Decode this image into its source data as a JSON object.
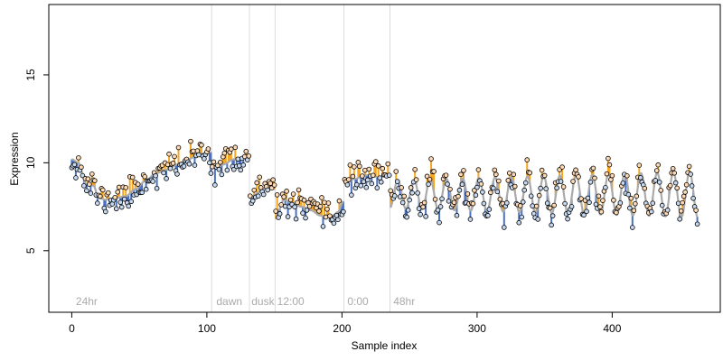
{
  "chart_data": {
    "type": "scatter",
    "title": "",
    "xlabel": "Sample index",
    "ylabel": "Expression",
    "xlim": [
      -17,
      480
    ],
    "ylim": [
      1.5,
      19
    ],
    "xticks": [
      0,
      100,
      200,
      300,
      400
    ],
    "yticks": [
      5,
      10,
      15
    ],
    "grid": false,
    "legend": "none",
    "section_boundaries": [
      104,
      132,
      151,
      202,
      236
    ],
    "section_labels": [
      {
        "x": 3,
        "label": "24hr"
      },
      {
        "x": 107,
        "label": "dawn"
      },
      {
        "x": 133,
        "label": "dusk"
      },
      {
        "x": 152,
        "label": "12:00"
      },
      {
        "x": 204,
        "label": "0:00"
      },
      {
        "x": 238,
        "label": "48hr"
      }
    ],
    "segments": [
      {
        "start": 0,
        "end": 103,
        "model": "smooth",
        "knots": [
          [
            0,
            10.2
          ],
          [
            5,
            10.0
          ],
          [
            8,
            9.4
          ],
          [
            10,
            8.8
          ],
          [
            16,
            8.7
          ],
          [
            20,
            8.0
          ],
          [
            25,
            7.9
          ],
          [
            33,
            8.0
          ],
          [
            40,
            8.1
          ],
          [
            47,
            8.5
          ],
          [
            55,
            9.0
          ],
          [
            62,
            9.4
          ],
          [
            70,
            9.6
          ],
          [
            78,
            9.9
          ],
          [
            86,
            10.2
          ],
          [
            95,
            10.5
          ],
          [
            103,
            10.6
          ]
        ]
      },
      {
        "start": 104,
        "end": 131,
        "model": "smooth",
        "knots": [
          [
            104,
            9.7
          ],
          [
            112,
            9.9
          ],
          [
            120,
            10.2
          ],
          [
            127,
            10.3
          ],
          [
            131,
            10.2
          ]
        ]
      },
      {
        "start": 132,
        "end": 150,
        "model": "smooth",
        "knots": [
          [
            132,
            8.0
          ],
          [
            136,
            8.2
          ],
          [
            141,
            8.5
          ],
          [
            146,
            8.6
          ],
          [
            150,
            8.5
          ]
        ]
      },
      {
        "start": 151,
        "end": 201,
        "model": "smooth",
        "knots": [
          [
            151,
            6.8
          ],
          [
            153,
            7.3
          ],
          [
            157,
            7.9
          ],
          [
            163,
            7.7
          ],
          [
            170,
            7.5
          ],
          [
            177,
            7.3
          ],
          [
            184,
            7.0
          ],
          [
            189,
            6.9
          ],
          [
            193,
            7.0
          ],
          [
            197,
            7.2
          ],
          [
            201,
            7.8
          ]
        ]
      },
      {
        "start": 202,
        "end": 235,
        "model": "smooth",
        "knots": [
          [
            202,
            8.8
          ],
          [
            210,
            9.1
          ],
          [
            218,
            9.3
          ],
          [
            226,
            9.2
          ],
          [
            235,
            9.3
          ]
        ]
      },
      {
        "start": 236,
        "end": 463,
        "model": "oscillating",
        "mean": 8.2,
        "period": 12,
        "amp_start": 0.8,
        "amp_end": 1.3,
        "phase": -1.2
      }
    ],
    "fit_color": "#aaaaaa",
    "above_color": "#f5a623",
    "below_color": "#4a72c4",
    "point_above_fill": "#fdd9b5",
    "point_below_fill": "#c6d8f0",
    "point_edge": "#000000",
    "noise_sd": 0.42,
    "random_seed": 11
  }
}
